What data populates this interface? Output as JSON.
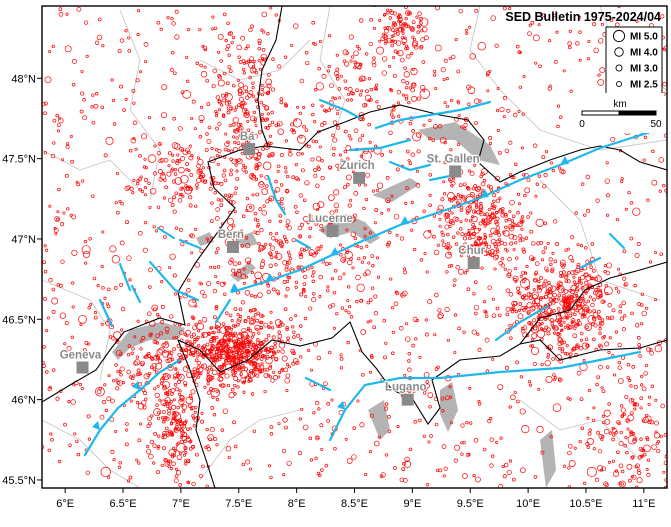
{
  "map": {
    "title": "SED Bulletin 1975-2024/04",
    "lon_range": [
      5.8,
      11.2
    ],
    "lat_range": [
      45.45,
      48.45
    ],
    "colors": {
      "quake": "#ff0000",
      "fault": "#1fb8ec",
      "lake": "#b4b4b4",
      "city": "#8a8a8a",
      "border": "#000000",
      "region": "#c8c8c8"
    },
    "x_ticks": [
      {
        "value": 6.0,
        "label": "6°E"
      },
      {
        "value": 6.5,
        "label": "6.5°E"
      },
      {
        "value": 7.0,
        "label": "7°E"
      },
      {
        "value": 7.5,
        "label": "7.5°E"
      },
      {
        "value": 8.0,
        "label": "8°E"
      },
      {
        "value": 8.5,
        "label": "8.5°E"
      },
      {
        "value": 9.0,
        "label": "9°E"
      },
      {
        "value": 9.5,
        "label": "9.5°E"
      },
      {
        "value": 10.0,
        "label": "10°E"
      },
      {
        "value": 10.5,
        "label": "10.5°E"
      },
      {
        "value": 11.0,
        "label": "11°E"
      }
    ],
    "y_ticks": [
      {
        "value": 48.0,
        "label": "48°N"
      },
      {
        "value": 47.5,
        "label": "47.5°N"
      },
      {
        "value": 47.0,
        "label": "47°N"
      },
      {
        "value": 46.5,
        "label": "46.5°N"
      },
      {
        "value": 46.0,
        "label": "46°N"
      },
      {
        "value": 45.5,
        "label": "45.5°N"
      }
    ],
    "cities": [
      {
        "name": "Basel",
        "label": "Ba",
        "lon": 7.59,
        "lat": 47.56
      },
      {
        "name": "Zurich",
        "label": "Zurich",
        "lon": 8.54,
        "lat": 47.38
      },
      {
        "name": "St. Gallen",
        "label": "St. Gallen",
        "lon": 9.37,
        "lat": 47.42
      },
      {
        "name": "Lucerne",
        "label": "Lucerne",
        "lon": 8.31,
        "lat": 47.05
      },
      {
        "name": "Bern",
        "label": "Bern",
        "lon": 7.45,
        "lat": 46.95
      },
      {
        "name": "Chur",
        "label": "Chur",
        "lon": 9.53,
        "lat": 46.85
      },
      {
        "name": "Geneva",
        "label": "Geneva",
        "lon": 6.15,
        "lat": 46.2
      },
      {
        "name": "Lugano",
        "label": "Lugano",
        "lon": 8.96,
        "lat": 46.0
      }
    ],
    "legend": {
      "items": [
        {
          "label": "MI 5.0",
          "magnitude": 5.0
        },
        {
          "label": "MI 4.0",
          "magnitude": 4.0
        },
        {
          "label": "MI 3.0",
          "magnitude": 3.0
        },
        {
          "label": "MI 2.5",
          "magnitude": 2.5
        }
      ]
    },
    "scale_bar": {
      "unit": "km",
      "start_label": "0",
      "end_label": "50",
      "length_km": 50
    },
    "seismic_clusters": [
      {
        "lon": 7.45,
        "lat": 46.3,
        "sigma_lon": 0.25,
        "sigma_lat": 0.1,
        "count": 520
      },
      {
        "lon": 10.3,
        "lat": 46.6,
        "sigma_lon": 0.25,
        "sigma_lat": 0.15,
        "count": 420
      },
      {
        "lon": 9.6,
        "lat": 47.1,
        "sigma_lon": 0.2,
        "sigma_lat": 0.15,
        "count": 260
      },
      {
        "lon": 7.6,
        "lat": 47.7,
        "sigma_lon": 0.18,
        "sigma_lat": 0.3,
        "count": 240
      },
      {
        "lon": 8.0,
        "lat": 46.9,
        "sigma_lon": 0.5,
        "sigma_lat": 0.25,
        "count": 260
      },
      {
        "lon": 6.95,
        "lat": 45.8,
        "sigma_lon": 0.12,
        "sigma_lat": 0.15,
        "count": 150
      },
      {
        "lon": 8.9,
        "lat": 48.3,
        "sigma_lon": 0.1,
        "sigma_lat": 0.08,
        "count": 90
      },
      {
        "lon": 6.8,
        "lat": 46.2,
        "sigma_lon": 0.2,
        "sigma_lat": 0.15,
        "count": 120
      },
      {
        "lon": 10.9,
        "lat": 45.8,
        "sigma_lon": 0.2,
        "sigma_lat": 0.2,
        "count": 120
      },
      {
        "lon": 7.0,
        "lat": 47.4,
        "sigma_lon": 0.2,
        "sigma_lat": 0.1,
        "count": 90
      },
      {
        "lon": 8.6,
        "lat": 47.8,
        "sigma_lon": 0.3,
        "sigma_lat": 0.2,
        "count": 110
      }
    ],
    "background_quake_count": 1300,
    "large_quakes": [
      {
        "lon": 6.15,
        "lat": 46.5,
        "mag": 3.8
      },
      {
        "lon": 6.3,
        "lat": 46.05,
        "mag": 4.2
      },
      {
        "lon": 6.35,
        "lat": 45.55,
        "mag": 4.4
      },
      {
        "lon": 6.45,
        "lat": 46.4,
        "mag": 3.6
      },
      {
        "lon": 6.75,
        "lat": 47.5,
        "mag": 3.7
      },
      {
        "lon": 7.05,
        "lat": 47.9,
        "mag": 3.8
      },
      {
        "lon": 7.1,
        "lat": 46.6,
        "mag": 3.6
      },
      {
        "lon": 7.55,
        "lat": 46.4,
        "mag": 3.5
      },
      {
        "lon": 8.2,
        "lat": 47.95,
        "mag": 3.6
      },
      {
        "lon": 8.7,
        "lat": 47.55,
        "mag": 3.5
      },
      {
        "lon": 9.1,
        "lat": 48.35,
        "mag": 3.9
      },
      {
        "lon": 9.6,
        "lat": 48.2,
        "mag": 3.7
      },
      {
        "lon": 10.1,
        "lat": 47.1,
        "mag": 3.6
      },
      {
        "lon": 10.55,
        "lat": 46.5,
        "mag": 3.8
      },
      {
        "lon": 10.55,
        "lat": 45.55,
        "mag": 4.3
      },
      {
        "lon": 10.9,
        "lat": 45.75,
        "mag": 4.1
      },
      {
        "lon": 10.25,
        "lat": 45.95,
        "mag": 3.7
      },
      {
        "lon": 8.45,
        "lat": 46.9,
        "mag": 3.6
      }
    ]
  }
}
